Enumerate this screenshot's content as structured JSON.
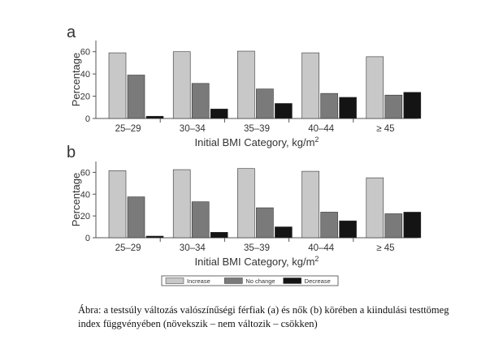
{
  "chart_data": [
    {
      "type": "bar",
      "panel_label": "a",
      "categories": [
        "25–29",
        "30–34",
        "35–39",
        "40–44",
        "≥ 45"
      ],
      "series": [
        {
          "name": "Increase",
          "values": [
            59,
            60,
            60.5,
            59,
            55.5
          ]
        },
        {
          "name": "No change",
          "values": [
            39,
            31.5,
            26.5,
            22.5,
            21
          ]
        },
        {
          "name": "Decrease",
          "values": [
            2,
            8.5,
            13.5,
            19,
            23.5
          ]
        }
      ],
      "xlabel": "Initial BMI Category, kg/m²",
      "ylabel": "Percentage",
      "yticks": [
        0,
        20,
        40,
        60
      ],
      "ylim": [
        0,
        70
      ]
    },
    {
      "type": "bar",
      "panel_label": "b",
      "categories": [
        "25–29",
        "30–34",
        "35–39",
        "40–44",
        "≥ 45"
      ],
      "series": [
        {
          "name": "Increase",
          "values": [
            61.5,
            62.5,
            63.5,
            61,
            55
          ]
        },
        {
          "name": "No change",
          "values": [
            37.5,
            33,
            27.5,
            23.5,
            22
          ]
        },
        {
          "name": "Decrease",
          "values": [
            1.5,
            5,
            10,
            15.5,
            23.5
          ]
        }
      ],
      "xlabel": "Initial BMI Category, kg/m²",
      "ylabel": "Percentage",
      "yticks": [
        0,
        20,
        40,
        60
      ],
      "ylim": [
        0,
        70
      ]
    }
  ],
  "legend": {
    "placement": "bottom-center",
    "items": [
      "Increase",
      "No change",
      "Decrease"
    ]
  },
  "colors": {
    "Increase": "#c8c8c8",
    "No change": "#7a7a7a",
    "Decrease": "#141414",
    "bar_outline": "#333333",
    "axis": "#555555"
  },
  "caption": {
    "line1": "Ábra: a testsúly változás valószínűségi férfiak (a) és nők (b) körében a kiindulási testtömeg",
    "line2": "index függvényében (növekszik – nem változik – csökken)"
  }
}
